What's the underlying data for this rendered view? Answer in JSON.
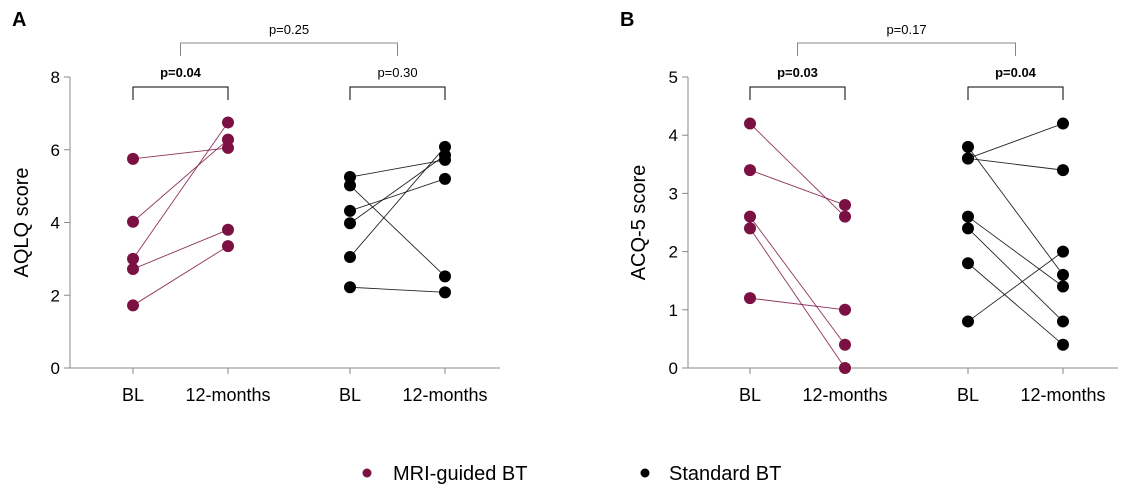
{
  "colors": {
    "mri": "#7b1142",
    "standard": "#000000"
  },
  "legend": [
    {
      "label": "MRI-guided BT",
      "color": "#7b1142"
    },
    {
      "label": "Standard BT",
      "color": "#000000"
    }
  ],
  "chart_data": [
    {
      "type": "scatter",
      "panel": "A",
      "ylabel": "AQLQ score",
      "ylim": [
        0,
        8
      ],
      "yticks": [
        0,
        2,
        4,
        6,
        8
      ],
      "categories": [
        "BL",
        "12-months",
        "BL",
        "12-months"
      ],
      "groups": [
        {
          "name": "MRI-guided BT",
          "pairs": [
            [
              5.75,
              6.05
            ],
            [
              4.02,
              6.28
            ],
            [
              3.0,
              6.75
            ],
            [
              2.72,
              3.8
            ],
            [
              1.72,
              3.35
            ]
          ],
          "comparison": {
            "label": "p=0.04",
            "bold": true
          }
        },
        {
          "name": "Standard BT",
          "pairs": [
            [
              5.25,
              5.72
            ],
            [
              5.02,
              2.52
            ],
            [
              4.32,
              5.2
            ],
            [
              3.98,
              5.85
            ],
            [
              3.05,
              6.08
            ],
            [
              2.22,
              2.08
            ]
          ],
          "comparison": {
            "label": "p=0.30",
            "bold": false
          }
        }
      ],
      "between": {
        "label": "p=0.25",
        "bold": false
      }
    },
    {
      "type": "scatter",
      "panel": "B",
      "ylabel": "ACQ-5 score",
      "ylim": [
        0,
        5
      ],
      "yticks": [
        0,
        1,
        2,
        3,
        4,
        5
      ],
      "categories": [
        "BL",
        "12-months",
        "BL",
        "12-months"
      ],
      "groups": [
        {
          "name": "MRI-guided BT",
          "pairs": [
            [
              4.2,
              2.6
            ],
            [
              3.4,
              2.8
            ],
            [
              2.6,
              0.4
            ],
            [
              2.4,
              0.0
            ],
            [
              1.2,
              1.0
            ]
          ],
          "comparison": {
            "label": "p=0.03",
            "bold": true
          }
        },
        {
          "name": "Standard BT",
          "pairs": [
            [
              3.8,
              1.6
            ],
            [
              3.6,
              4.2
            ],
            [
              3.6,
              3.4
            ],
            [
              2.6,
              1.4
            ],
            [
              2.4,
              0.8
            ],
            [
              1.8,
              0.4
            ],
            [
              0.8,
              2.0
            ]
          ],
          "comparison": {
            "label": "p=0.04",
            "bold": true
          }
        }
      ],
      "between": {
        "label": "p=0.17",
        "bold": false
      }
    }
  ]
}
